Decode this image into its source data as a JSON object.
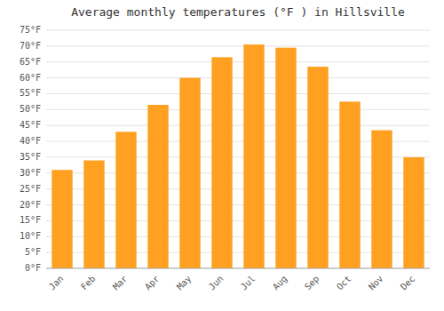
{
  "chart_data": {
    "type": "bar",
    "title": "Average monthly temperatures (°F ) in Hillsville",
    "categories": [
      "Jan",
      "Feb",
      "Mar",
      "Apr",
      "May",
      "Jun",
      "Jul",
      "Aug",
      "Sep",
      "Oct",
      "Nov",
      "Dec"
    ],
    "values": [
      31,
      34,
      43,
      51.5,
      60,
      66.5,
      70.5,
      69.5,
      63.5,
      52.5,
      43.5,
      35
    ],
    "color": "#FFA020",
    "ylim": [
      0,
      75
    ],
    "yticks": [
      {
        "value": 0,
        "label": "0°F"
      },
      {
        "value": 5,
        "label": "5°F"
      },
      {
        "value": 10,
        "label": "10°F"
      },
      {
        "value": 15,
        "label": "15°F"
      },
      {
        "value": 20,
        "label": "20°F"
      },
      {
        "value": 25,
        "label": "25°F"
      },
      {
        "value": 30,
        "label": "30°F"
      },
      {
        "value": 35,
        "label": "35°F"
      },
      {
        "value": 40,
        "label": "40°F"
      },
      {
        "value": 45,
        "label": "45°F"
      },
      {
        "value": 50,
        "label": "50°F"
      },
      {
        "value": 55,
        "label": "55°F"
      },
      {
        "value": 60,
        "label": "60°F"
      },
      {
        "value": 65,
        "label": "65°F"
      },
      {
        "value": 70,
        "label": "70°F"
      },
      {
        "value": 75,
        "label": "75°F"
      }
    ],
    "grid": true
  }
}
